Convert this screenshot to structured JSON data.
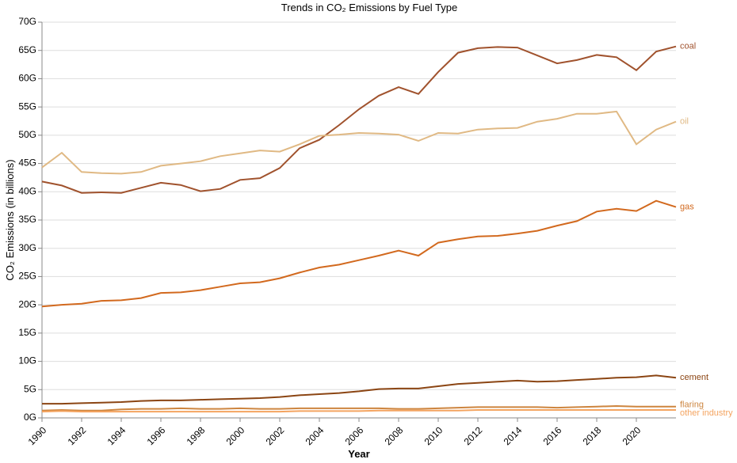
{
  "chart_data": {
    "type": "line",
    "title": "Trends in CO₂ Emissions by Fuel Type",
    "xlabel": "Year",
    "ylabel": "CO₂ Emissions (in billions)",
    "xlim": [
      1990,
      2022
    ],
    "ylim": [
      0,
      70
    ],
    "x_ticks": [
      1990,
      1992,
      1994,
      1996,
      1998,
      2000,
      2002,
      2004,
      2006,
      2008,
      2010,
      2012,
      2014,
      2016,
      2018,
      2020
    ],
    "y_ticks": [
      0,
      5,
      10,
      15,
      20,
      25,
      30,
      35,
      40,
      45,
      50,
      55,
      60,
      65,
      70
    ],
    "y_tick_labels": [
      "0G",
      "5G",
      "10G",
      "15G",
      "20G",
      "25G",
      "30G",
      "35G",
      "40G",
      "45G",
      "50G",
      "55G",
      "60G",
      "65G",
      "70G"
    ],
    "grid": true,
    "x": [
      1990,
      1991,
      1992,
      1993,
      1994,
      1995,
      1996,
      1997,
      1998,
      1999,
      2000,
      2001,
      2002,
      2003,
      2004,
      2005,
      2006,
      2007,
      2008,
      2009,
      2010,
      2011,
      2012,
      2013,
      2014,
      2015,
      2016,
      2017,
      2018,
      2019,
      2020,
      2021,
      2022
    ],
    "series": [
      {
        "name": "coal",
        "color": "#a0522d",
        "values": [
          41.8,
          41.1,
          39.8,
          39.9,
          39.8,
          40.7,
          41.6,
          41.2,
          40.1,
          40.5,
          42.1,
          42.4,
          44.2,
          47.7,
          49.2,
          51.8,
          54.6,
          57.0,
          58.5,
          57.3,
          61.2,
          64.6,
          65.4,
          65.6,
          65.5,
          64.1,
          62.7,
          63.3,
          64.2,
          63.8,
          61.5,
          64.8,
          65.7
        ]
      },
      {
        "name": "oil",
        "color": "#e0b984",
        "values": [
          44.3,
          46.9,
          43.5,
          43.3,
          43.2,
          43.5,
          44.6,
          45.0,
          45.4,
          46.3,
          46.8,
          47.3,
          47.1,
          48.4,
          49.9,
          50.1,
          50.4,
          50.3,
          50.1,
          49.0,
          50.4,
          50.3,
          51.0,
          51.2,
          51.3,
          52.4,
          52.9,
          53.8,
          53.8,
          54.2,
          48.4,
          51.0,
          52.4
        ]
      },
      {
        "name": "gas",
        "color": "#d2691e",
        "values": [
          19.7,
          20.0,
          20.2,
          20.7,
          20.8,
          21.2,
          22.1,
          22.2,
          22.6,
          23.2,
          23.8,
          24.0,
          24.7,
          25.7,
          26.6,
          27.1,
          27.9,
          28.7,
          29.6,
          28.7,
          31.0,
          31.6,
          32.1,
          32.2,
          32.6,
          33.1,
          34.0,
          34.8,
          36.5,
          37.0,
          36.6,
          38.4,
          37.3
        ]
      },
      {
        "name": "cement",
        "color": "#8b4513",
        "values": [
          2.5,
          2.5,
          2.6,
          2.7,
          2.8,
          3.0,
          3.1,
          3.1,
          3.2,
          3.3,
          3.4,
          3.5,
          3.7,
          4.0,
          4.2,
          4.4,
          4.7,
          5.1,
          5.2,
          5.2,
          5.6,
          6.0,
          6.2,
          6.4,
          6.6,
          6.4,
          6.5,
          6.7,
          6.9,
          7.1,
          7.2,
          7.5,
          7.1
        ]
      },
      {
        "name": "flaring",
        "color": "#cd853f",
        "values": [
          1.3,
          1.4,
          1.3,
          1.3,
          1.5,
          1.6,
          1.6,
          1.7,
          1.6,
          1.6,
          1.7,
          1.6,
          1.6,
          1.7,
          1.7,
          1.7,
          1.7,
          1.7,
          1.6,
          1.6,
          1.7,
          1.8,
          1.9,
          1.9,
          1.9,
          1.9,
          1.8,
          1.9,
          2.0,
          2.1,
          2.0,
          2.0,
          2.0
        ]
      },
      {
        "name": "other industry",
        "color": "#f4a460",
        "values": [
          1.1,
          1.2,
          1.1,
          1.1,
          1.1,
          1.1,
          1.1,
          1.1,
          1.1,
          1.1,
          1.1,
          1.1,
          1.1,
          1.2,
          1.2,
          1.2,
          1.2,
          1.3,
          1.3,
          1.3,
          1.3,
          1.3,
          1.4,
          1.4,
          1.4,
          1.4,
          1.4,
          1.4,
          1.4,
          1.4,
          1.4,
          1.4,
          1.4
        ]
      }
    ]
  }
}
